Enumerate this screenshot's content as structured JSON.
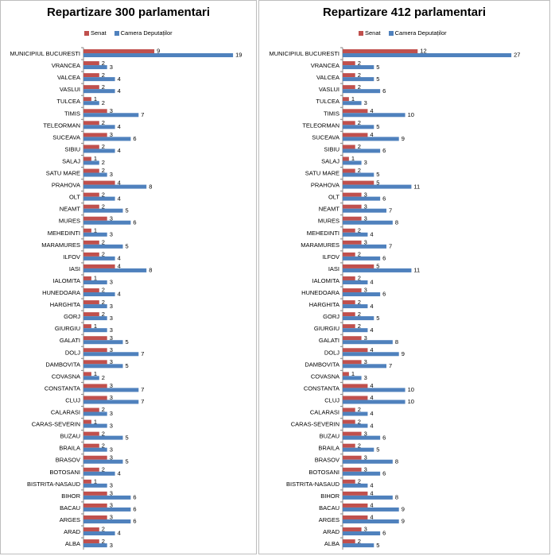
{
  "chart_data": [
    {
      "type": "bar",
      "orientation": "horizontal",
      "title": "Repartizare 300 parlamentari",
      "legend_position": "top",
      "xlim": [
        0,
        20
      ],
      "categories": [
        "MUNICIPIUL BUCURESTI",
        "VRANCEA",
        "VALCEA",
        "VASLUI",
        "TULCEA",
        "TIMIS",
        "TELEORMAN",
        "SUCEAVA",
        "SIBIU",
        "SALAJ",
        "SATU MARE",
        "PRAHOVA",
        "OLT",
        "NEAMT",
        "MURES",
        "MEHEDINTI",
        "MARAMURES",
        "ILFOV",
        "IASI",
        "IALOMITA",
        "HUNEDOARA",
        "HARGHITA",
        "GORJ",
        "GIURGIU",
        "GALATI",
        "DOLJ",
        "DAMBOVITA",
        "COVASNA",
        "CONSTANTA",
        "CLUJ",
        "CALARASI",
        "CARAS-SEVERIN",
        "BUZAU",
        "BRAILA",
        "BRASOV",
        "BOTOSANI",
        "BISTRITA-NASAUD",
        "BIHOR",
        "BACAU",
        "ARGES",
        "ARAD",
        "ALBA"
      ],
      "series": [
        {
          "name": "Senat",
          "color": "#c0504d",
          "values": [
            9,
            2,
            2,
            2,
            1,
            3,
            2,
            3,
            2,
            1,
            2,
            4,
            2,
            2,
            3,
            1,
            2,
            2,
            4,
            1,
            2,
            2,
            2,
            1,
            3,
            3,
            3,
            1,
            3,
            3,
            2,
            1,
            2,
            2,
            3,
            2,
            1,
            3,
            3,
            3,
            2,
            2
          ]
        },
        {
          "name": "Camera Deputaților",
          "color": "#4f81bd",
          "values": [
            19,
            3,
            4,
            4,
            2,
            7,
            4,
            6,
            4,
            2,
            3,
            8,
            4,
            5,
            6,
            3,
            5,
            4,
            8,
            3,
            4,
            3,
            3,
            3,
            5,
            7,
            5,
            2,
            7,
            7,
            3,
            3,
            5,
            3,
            5,
            4,
            3,
            6,
            6,
            6,
            4,
            3
          ]
        }
      ]
    },
    {
      "type": "bar",
      "orientation": "horizontal",
      "title": "Repartizare 412 parlamentari",
      "legend_position": "top",
      "xlim": [
        0,
        28
      ],
      "categories": [
        "MUNICIPIUL BUCURESTI",
        "VRANCEA",
        "VALCEA",
        "VASLUI",
        "TULCEA",
        "TIMIS",
        "TELEORMAN",
        "SUCEAVA",
        "SIBIU",
        "SALAJ",
        "SATU MARE",
        "PRAHOVA",
        "OLT",
        "NEAMT",
        "MURES",
        "MEHEDINTI",
        "MARAMURES",
        "ILFOV",
        "IASI",
        "IALOMITA",
        "HUNEDOARA",
        "HARGHITA",
        "GORJ",
        "GIURGIU",
        "GALATI",
        "DOLJ",
        "DAMBOVITA",
        "COVASNA",
        "CONSTANTA",
        "CLUJ",
        "CALARASI",
        "CARAS-SEVERIN",
        "BUZAU",
        "BRAILA",
        "BRASOV",
        "BOTOSANI",
        "BISTRITA-NASAUD",
        "BIHOR",
        "BACAU",
        "ARGES",
        "ARAD",
        "ALBA"
      ],
      "series": [
        {
          "name": "Senat",
          "color": "#c0504d",
          "values": [
            12,
            2,
            2,
            2,
            1,
            4,
            2,
            4,
            2,
            1,
            2,
            5,
            3,
            3,
            3,
            2,
            3,
            2,
            5,
            2,
            3,
            2,
            2,
            2,
            3,
            4,
            3,
            1,
            4,
            4,
            2,
            2,
            3,
            2,
            3,
            3,
            2,
            4,
            4,
            4,
            3,
            2
          ]
        },
        {
          "name": "Camera Deputaților",
          "color": "#4f81bd",
          "values": [
            27,
            5,
            5,
            6,
            3,
            10,
            5,
            9,
            6,
            3,
            5,
            11,
            6,
            7,
            8,
            4,
            7,
            6,
            11,
            4,
            6,
            4,
            5,
            4,
            8,
            9,
            7,
            3,
            10,
            10,
            4,
            4,
            6,
            5,
            8,
            6,
            4,
            8,
            9,
            9,
            6,
            5
          ]
        }
      ]
    }
  ]
}
